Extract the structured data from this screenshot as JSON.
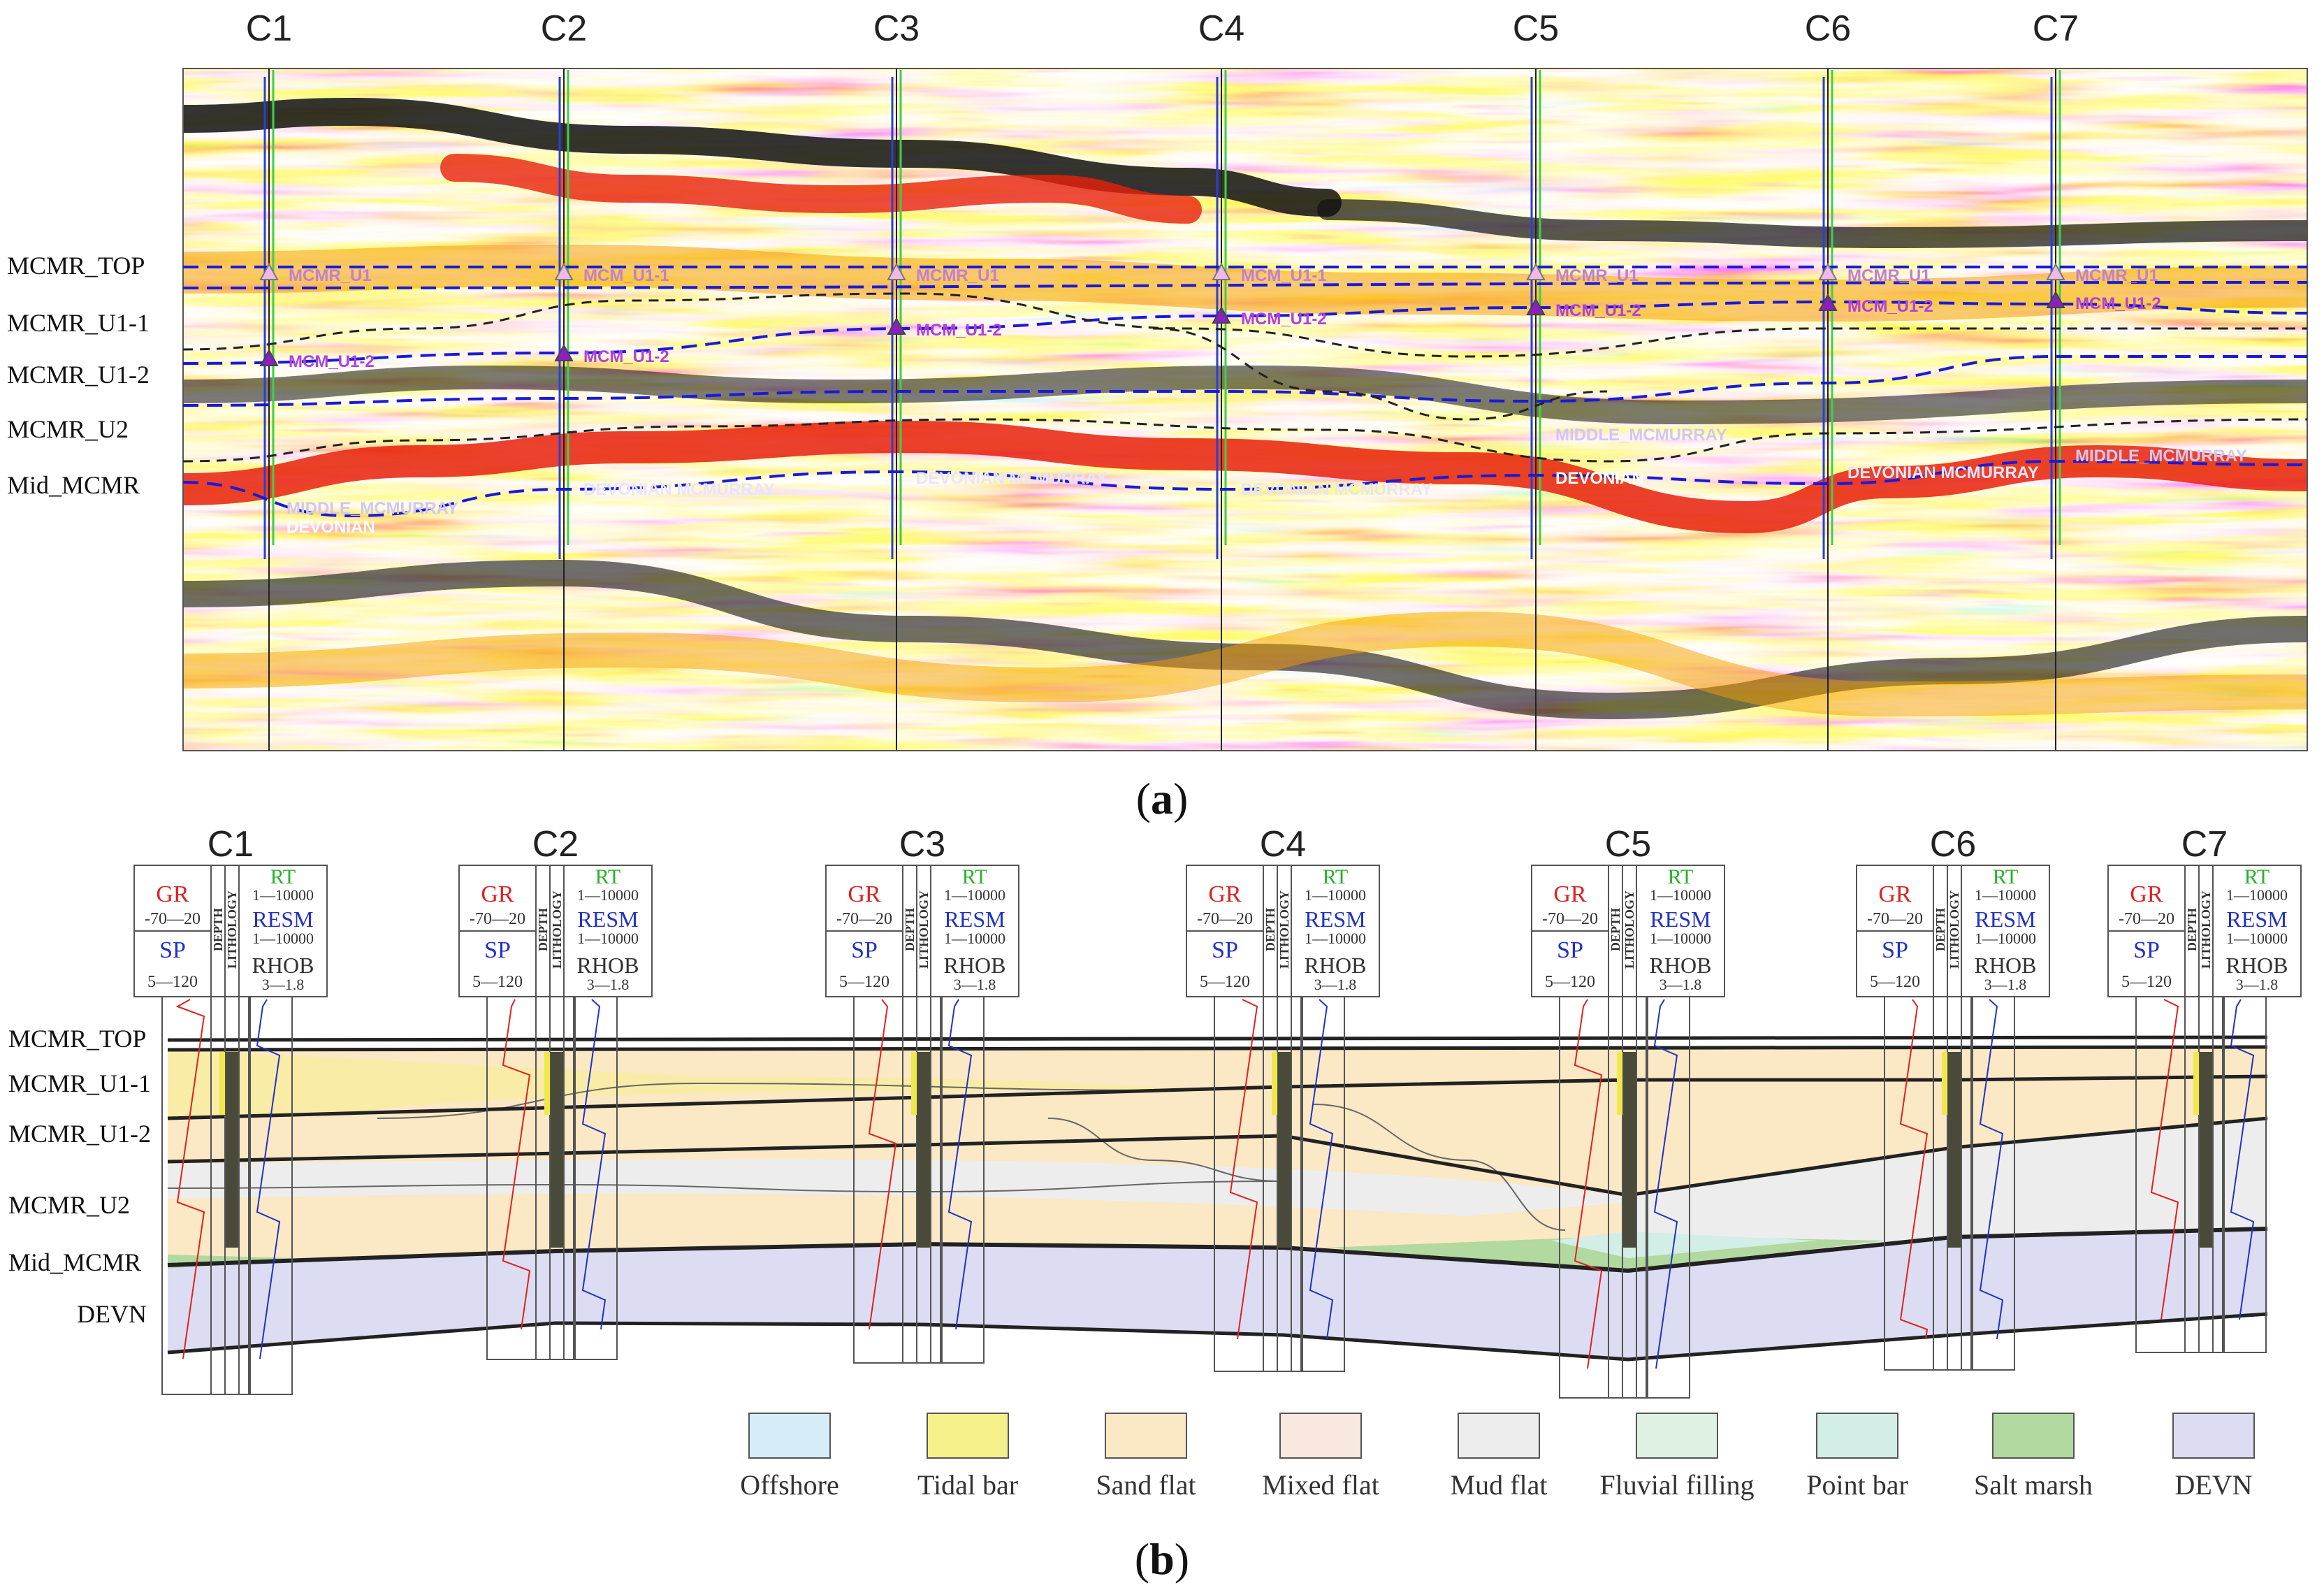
{
  "panel_a": {
    "tag_open": "(",
    "tag_letter": "a",
    "tag_close": ")",
    "wells": [
      "C1",
      "C2",
      "C3",
      "C4",
      "C5",
      "C6",
      "C7"
    ],
    "horizon_labels": [
      "MCMR_TOP",
      "MCMR_U1-1",
      "MCMR_U1-2",
      "MCMR_U2",
      "Mid_MCMR"
    ],
    "picks": {
      "top": [
        "MCMR_U1",
        "MCM_U1-1",
        "MCMR_U1",
        "MCM_U1-1",
        "MCMR_U1",
        "MCMR_U1",
        "MCMR_U1"
      ],
      "u12": [
        "MCM_U1-2",
        "MCM_U1-2",
        "MCM_U1-2",
        "MCM_U1-2",
        "MCM_U1-2",
        "MCM_U1-2",
        "MCM_U1-2"
      ],
      "middle_a": "MIDDLE_MCMURRAY",
      "devonian_a": "DEVONIAN",
      "devonian_mcm": "DEVONIAN MCMURRAY",
      "middle_c5": "MIDDLE_MCMURRAY",
      "devonian_c5": "DEVONIAN",
      "middle_c7": "MIDDLE_MCMURRAY"
    }
  },
  "panel_b": {
    "tag_open": "(",
    "tag_letter": "b",
    "tag_close": ")",
    "wells": [
      "C1",
      "C2",
      "C3",
      "C4",
      "C5",
      "C6",
      "C7"
    ],
    "log_header": {
      "gr": "GR",
      "gr_scale": "-70—20",
      "sp": "SP",
      "sp_scale": "5—120",
      "depth": "DEPTH",
      "lithology": "LITHOLOGY",
      "rt": "RT",
      "rt_scale": "1—10000",
      "resm": "RESM",
      "resm_scale": "1—10000",
      "rhob": "RHOB",
      "rhob_scale": "3—1.8"
    },
    "horizon_labels": [
      "MCMR_TOP",
      "MCMR_U1-1",
      "MCMR_U1-2",
      "MCMR_U2",
      "Mid_MCMR",
      "DEVN"
    ],
    "legend": [
      {
        "label": "Offshore",
        "color": "#d5edf7"
      },
      {
        "label": "Tidal bar",
        "color": "#f6f08a"
      },
      {
        "label": "Sand  flat",
        "color": "#fbe8c4"
      },
      {
        "label": "Mixed  flat",
        "color": "#f8e8e0"
      },
      {
        "label": "Mud  flat",
        "color": "#ededed"
      },
      {
        "label": "Fluvial filling",
        "color": "#dff1e3"
      },
      {
        "label": "Point  bar",
        "color": "#d3eee6"
      },
      {
        "label": "Salt  marsh",
        "color": "#b2d9a0"
      },
      {
        "label": "DEVN",
        "color": "#dcdcf2"
      }
    ]
  }
}
